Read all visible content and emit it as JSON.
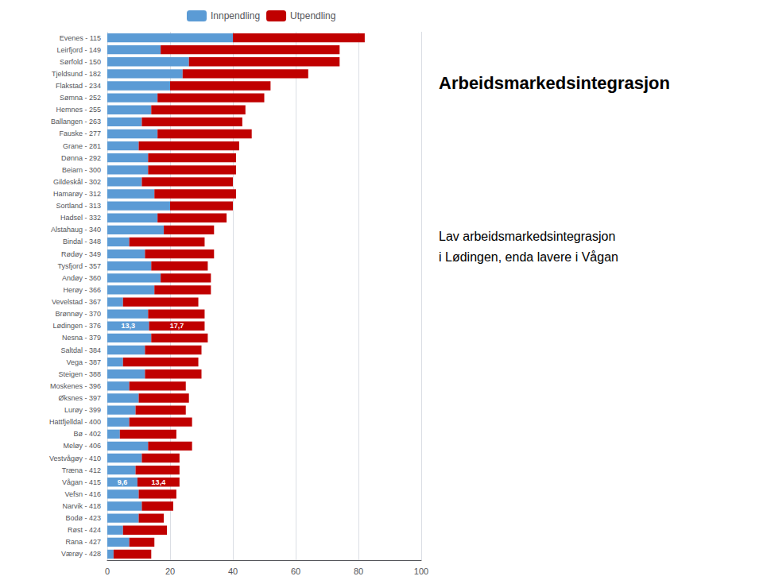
{
  "chart_data": {
    "type": "bar",
    "orientation": "horizontal",
    "stacked": true,
    "title": "Arbeidsmarkedsintegrasjon",
    "subtitle": "Lav arbeidsmarkedsintegrasjon\ni Lødingen, enda lavere i Vågan",
    "categories": [
      "Evenes - 115",
      "Leirfjord - 149",
      "Sørfold - 150",
      "Tjeldsund - 182",
      "Flakstad - 234",
      "Sømna - 252",
      "Hemnes - 255",
      "Ballangen - 263",
      "Fauske - 277",
      "Grane - 281",
      "Dønna - 292",
      "Beiarn - 300",
      "Gildeskål - 302",
      "Hamarøy - 312",
      "Sortland - 313",
      "Hadsel - 332",
      "Alstahaug - 340",
      "Bindal - 348",
      "Rødøy - 349",
      "Tysfjord - 357",
      "Andøy - 360",
      "Herøy - 366",
      "Vevelstad - 367",
      "Brønnøy - 370",
      "Lødingen - 376",
      "Nesna - 379",
      "Saltdal - 384",
      "Vega - 387",
      "Steigen - 388",
      "Moskenes - 396",
      "Øksnes - 397",
      "Lurøy - 399",
      "Hattfjelldal - 400",
      "Bø - 402",
      "Meløy - 406",
      "Vestvågøy - 410",
      "Træna - 412",
      "Vågan - 415",
      "Vefsn - 416",
      "Narvik - 418",
      "Bodø - 423",
      "Røst - 424",
      "Rana - 427",
      "Værøy - 428"
    ],
    "series": [
      {
        "name": "Innpendling",
        "color": "#5B9BD5",
        "values": [
          40,
          17,
          26,
          24,
          20,
          16,
          14,
          11,
          16,
          10,
          13,
          13,
          11,
          15,
          20,
          16,
          18,
          7,
          12,
          14,
          17,
          15,
          5,
          13,
          13.3,
          14,
          12,
          5,
          12,
          7,
          10,
          9,
          7,
          4,
          13,
          11,
          9,
          9.6,
          10,
          11,
          10,
          5,
          7,
          2
        ],
        "value_labels": [
          null,
          null,
          null,
          null,
          null,
          null,
          null,
          null,
          null,
          null,
          null,
          null,
          null,
          null,
          null,
          null,
          null,
          null,
          null,
          null,
          null,
          null,
          null,
          null,
          "13,3",
          null,
          null,
          null,
          null,
          null,
          null,
          null,
          null,
          null,
          null,
          null,
          null,
          "9,6",
          null,
          null,
          null,
          null,
          null,
          null
        ]
      },
      {
        "name": "Utpendling",
        "color": "#C00000",
        "values": [
          42,
          57,
          48,
          40,
          32,
          34,
          30,
          32,
          30,
          32,
          28,
          28,
          29,
          26,
          20,
          22,
          16,
          24,
          22,
          18,
          16,
          18,
          24,
          18,
          17.7,
          18,
          18,
          24,
          18,
          18,
          16,
          16,
          20,
          18,
          14,
          12,
          14,
          13.4,
          12,
          10,
          8,
          14,
          8,
          12
        ],
        "value_labels": [
          null,
          null,
          null,
          null,
          null,
          null,
          null,
          null,
          null,
          null,
          null,
          null,
          null,
          null,
          null,
          null,
          null,
          null,
          null,
          null,
          null,
          null,
          null,
          null,
          "17,7",
          null,
          null,
          null,
          null,
          null,
          null,
          null,
          null,
          null,
          null,
          null,
          null,
          "13,4",
          null,
          null,
          null,
          null,
          null,
          null
        ]
      }
    ],
    "xlim": [
      0,
      100
    ],
    "xticks": [
      0,
      20,
      40,
      60,
      80,
      100
    ],
    "grid": true,
    "legend": "top"
  }
}
